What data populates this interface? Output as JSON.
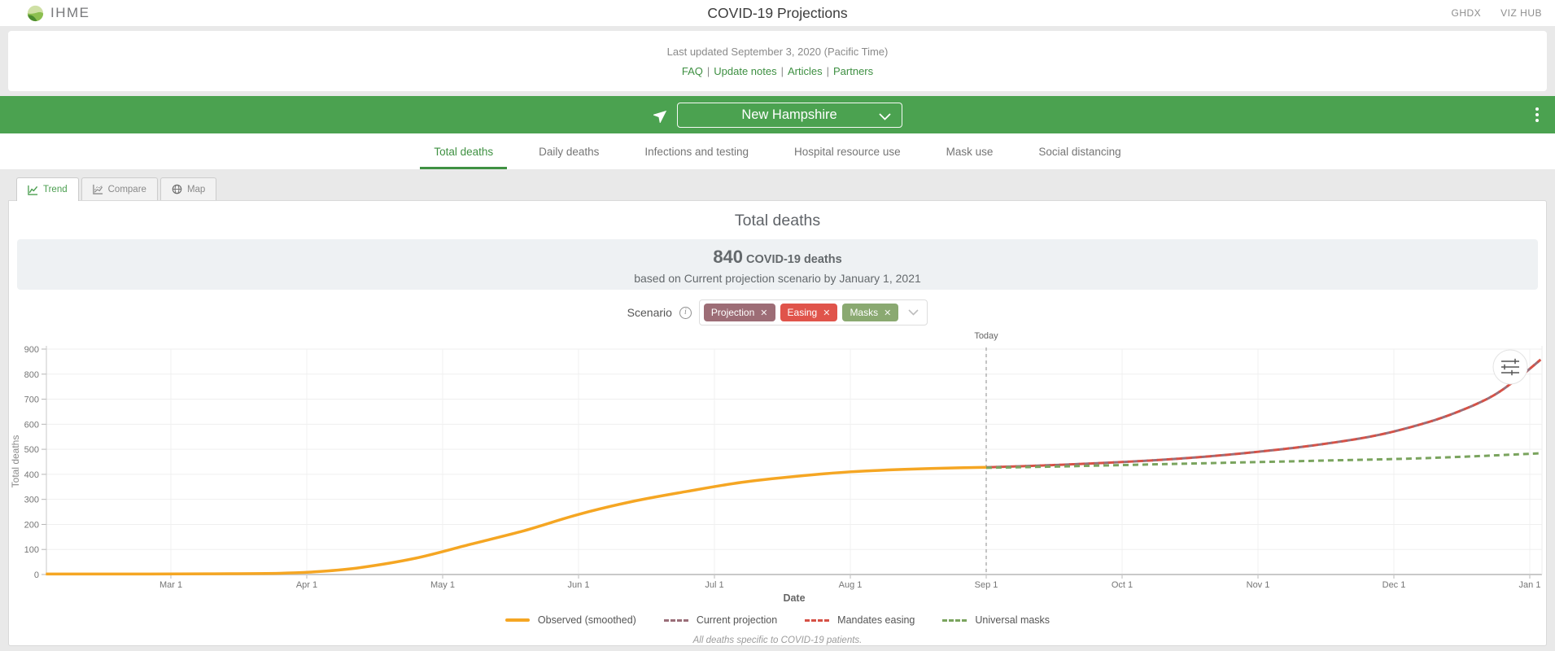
{
  "header": {
    "brand": "IHME",
    "title": "COVID-19 Projections",
    "links": [
      {
        "label": "GHDX"
      },
      {
        "label": "VIZ HUB"
      }
    ]
  },
  "subheader": {
    "updated": "Last updated September 3, 2020 (Pacific Time)",
    "separator": "|",
    "links": [
      {
        "label": "FAQ"
      },
      {
        "label": "Update notes"
      },
      {
        "label": "Articles"
      },
      {
        "label": "Partners"
      }
    ]
  },
  "locationbar": {
    "selected": "New Hampshire"
  },
  "nav": {
    "tabs": [
      {
        "label": "Total deaths",
        "active": true
      },
      {
        "label": "Daily deaths",
        "active": false
      },
      {
        "label": "Infections and testing",
        "active": false
      },
      {
        "label": "Hospital resource use",
        "active": false
      },
      {
        "label": "Mask use",
        "active": false
      },
      {
        "label": "Social distancing",
        "active": false
      }
    ]
  },
  "viewtabs": [
    {
      "label": "Trend",
      "active": true
    },
    {
      "label": "Compare",
      "active": false
    },
    {
      "label": "Map",
      "active": false
    }
  ],
  "main": {
    "heading": "Total deaths",
    "stat": {
      "value": "840",
      "unit": "COVID-19 deaths",
      "line2": "based on Current projection scenario by January 1, 2021"
    },
    "scenario": {
      "label": "Scenario",
      "remove_glyph": "✕",
      "chips": [
        {
          "label": "Projection",
          "color": "#9d6d76"
        },
        {
          "label": "Easing",
          "color": "#e0544b"
        },
        {
          "label": "Masks",
          "color": "#8aa971"
        }
      ]
    }
  },
  "chart_data": {
    "type": "line",
    "title": "Total deaths",
    "xlabel": "Date",
    "ylabel": "Total deaths",
    "x_unit": "months since Feb 1, 2020",
    "x_ticks": [
      "Mar 1",
      "Apr 1",
      "May 1",
      "Jun 1",
      "Jul 1",
      "Aug 1",
      "Sep 1",
      "Oct 1",
      "Nov 1",
      "Dec 1",
      "Jan 1"
    ],
    "y_ticks": [
      0,
      100,
      200,
      300,
      400,
      500,
      600,
      700,
      800,
      900
    ],
    "ylim": [
      0,
      900
    ],
    "grid": true,
    "today": {
      "label": "Today",
      "month": 7
    },
    "legend_position": "bottom",
    "series": [
      {
        "name": "Observed (smoothed)",
        "style": "solid",
        "color": "#f5a623",
        "points": [
          [
            0.08,
            2
          ],
          [
            0.7,
            2
          ],
          [
            1.3,
            3
          ],
          [
            1.8,
            5
          ],
          [
            2.1,
            12
          ],
          [
            2.4,
            28
          ],
          [
            2.8,
            65
          ],
          [
            3.2,
            120
          ],
          [
            3.6,
            175
          ],
          [
            4,
            240
          ],
          [
            4.4,
            292
          ],
          [
            4.8,
            332
          ],
          [
            5.2,
            368
          ],
          [
            5.6,
            392
          ],
          [
            6,
            410
          ],
          [
            6.4,
            420
          ],
          [
            6.8,
            426
          ],
          [
            7,
            428
          ]
        ]
      },
      {
        "name": "Current projection",
        "style": "dashed",
        "color": "#9a6e79",
        "points": [
          [
            7,
            428
          ],
          [
            7.4,
            435
          ],
          [
            7.8,
            444
          ],
          [
            8.2,
            455
          ],
          [
            8.6,
            470
          ],
          [
            9,
            490
          ],
          [
            9.4,
            515
          ],
          [
            9.8,
            548
          ],
          [
            10.1,
            585
          ],
          [
            10.4,
            635
          ],
          [
            10.7,
            705
          ],
          [
            10.9,
            778
          ],
          [
            11.08,
            858
          ]
        ]
      },
      {
        "name": "Mandates easing",
        "style": "dashed",
        "color": "#d65146",
        "points": [
          [
            7,
            428
          ],
          [
            7.4,
            435
          ],
          [
            7.8,
            444
          ],
          [
            8.2,
            455
          ],
          [
            8.6,
            470
          ],
          [
            9,
            490
          ],
          [
            9.4,
            515
          ],
          [
            9.8,
            548
          ],
          [
            10.1,
            585
          ],
          [
            10.4,
            635
          ],
          [
            10.7,
            705
          ],
          [
            10.9,
            778
          ],
          [
            11.08,
            858
          ]
        ]
      },
      {
        "name": "Universal masks",
        "style": "dashed",
        "color": "#7aa45e",
        "points": [
          [
            7,
            426
          ],
          [
            7.5,
            431
          ],
          [
            8,
            437
          ],
          [
            8.5,
            443
          ],
          [
            9,
            449
          ],
          [
            9.5,
            455
          ],
          [
            10,
            461
          ],
          [
            10.5,
            470
          ],
          [
            11,
            482
          ],
          [
            11.08,
            484
          ]
        ]
      }
    ],
    "note": "All deaths specific to COVID-19 patients."
  }
}
